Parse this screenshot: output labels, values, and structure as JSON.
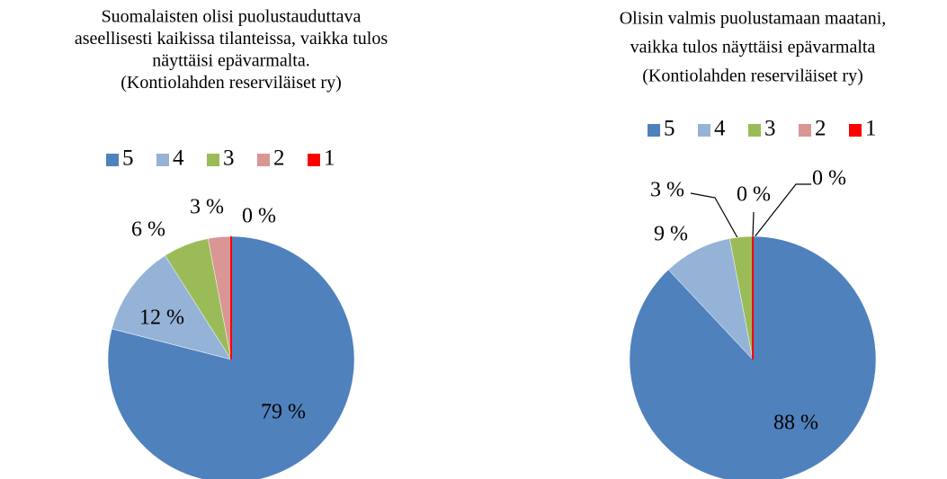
{
  "chart_data": [
    {
      "type": "pie",
      "title": [
        "Suomalaisten olisi puolustauduttava",
        "aseellisesti kaikissa tilanteissa, vaikka tulos",
        "näyttäisi epävarmalta.",
        "(Kontiolahden reserviläiset ry)"
      ],
      "categories": [
        "5",
        "4",
        "3",
        "2",
        "1"
      ],
      "values": [
        79,
        12,
        6,
        3,
        0
      ],
      "value_labels": [
        "79 %",
        "12 %",
        "6 %",
        "3 %",
        "0 %"
      ],
      "colors": [
        "#4f81bd",
        "#95b3d7",
        "#9bbb59",
        "#d99694",
        "#ff0000"
      ],
      "legend": "top"
    },
    {
      "type": "pie",
      "title": [
        "Olisin valmis puolustamaan maatani,",
        "vaikka tulos näyttäisi epävarmalta",
        "(Kontiolahden reserviläiset ry)"
      ],
      "categories": [
        "5",
        "4",
        "3",
        "2",
        "1"
      ],
      "values": [
        88,
        9,
        3,
        0,
        0
      ],
      "value_labels": [
        "88 %",
        "9 %",
        "3 %",
        "0 %",
        "0 %"
      ],
      "colors": [
        "#4f81bd",
        "#95b3d7",
        "#9bbb59",
        "#d99694",
        "#ff0000"
      ],
      "legend": "top"
    }
  ]
}
